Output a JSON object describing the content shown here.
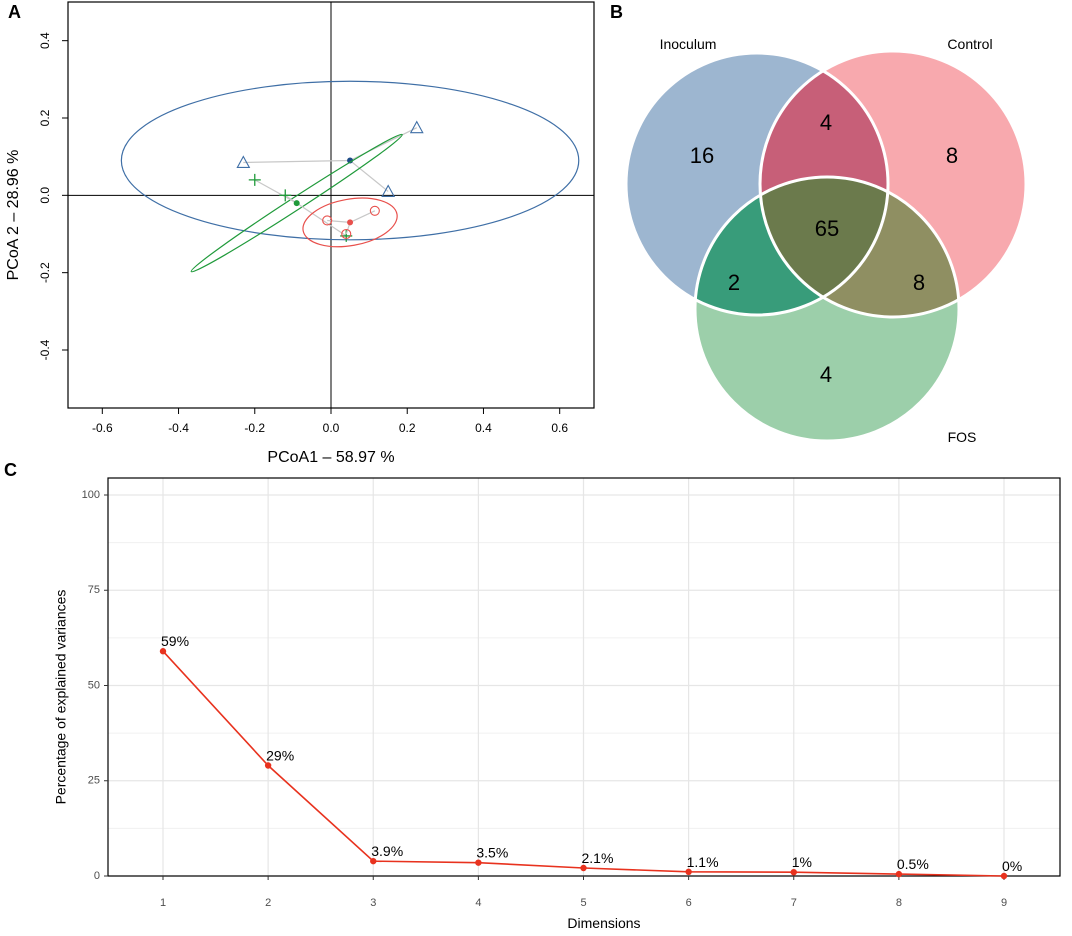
{
  "panels": {
    "a": "A",
    "b": "B",
    "c": "C"
  },
  "chart_data": [
    {
      "type": "scatter",
      "panel": "A",
      "title": "",
      "xlabel": "PCoA1 – 58.97 %",
      "ylabel": "PCoA 2 – 28.96 %",
      "xlim": [
        -0.69,
        0.69
      ],
      "ylim": [
        -0.55,
        0.5
      ],
      "xticks": [
        -0.6,
        -0.4,
        -0.2,
        0.0,
        0.2,
        0.4,
        0.6
      ],
      "xtick_labels": [
        "-0.6",
        "-0.4",
        "-0.2",
        "0.0",
        "0.2",
        "0.4",
        "0.6"
      ],
      "yticks": [
        -0.4,
        -0.2,
        0.0,
        0.2,
        0.4
      ],
      "ytick_labels": [
        "-0.4",
        "-0.2",
        "0.0",
        "0.2",
        "0.4"
      ],
      "reference_lines": {
        "x": 0,
        "y": 0
      },
      "series": [
        {
          "name": "Inoculum",
          "color": "#3f6fa6",
          "marker": "triangle",
          "centroid": [
            0.05,
            0.09
          ],
          "points": [
            [
              -0.23,
              0.085
            ],
            [
              0.15,
              0.01
            ],
            [
              0.225,
              0.175
            ]
          ],
          "ellipse": {
            "center": [
              0.05,
              0.09
            ],
            "rx": 0.6,
            "ry": 0.205,
            "angle_deg": 0
          }
        },
        {
          "name": "FOS",
          "color": "#1f9a3a",
          "marker": "plus",
          "centroid": [
            -0.09,
            -0.02
          ],
          "points": [
            [
              -0.2,
              0.04
            ],
            [
              -0.12,
              0.0
            ],
            [
              0.04,
              -0.105
            ]
          ],
          "ellipse": {
            "center": [
              -0.09,
              -0.02
            ],
            "rx": 0.33,
            "ry": 0.016,
            "angle_deg": -33
          }
        },
        {
          "name": "Control",
          "color": "#e8504c",
          "marker": "circle",
          "centroid": [
            0.05,
            -0.07
          ],
          "points": [
            [
              -0.01,
              -0.065
            ],
            [
              0.04,
              -0.1
            ],
            [
              0.115,
              -0.04
            ]
          ],
          "ellipse": {
            "center": [
              0.05,
              -0.07
            ],
            "rx": 0.125,
            "ry": 0.06,
            "angle_deg": -10
          }
        }
      ]
    },
    {
      "type": "venn",
      "panel": "B",
      "sets": [
        {
          "name": "Inoculum",
          "color": "#8ca9c8",
          "only": 16
        },
        {
          "name": "Control",
          "color": "#f79aa0",
          "only": 8
        },
        {
          "name": "FOS",
          "color": "#8bc79b",
          "only": 4
        }
      ],
      "intersections": {
        "Inoculum_Control": 4,
        "Inoculum_FOS": 2,
        "Control_FOS": 8,
        "all": 65
      }
    },
    {
      "type": "line",
      "panel": "C",
      "title": "",
      "xlabel": "Dimensions",
      "ylabel": "Percentage of explained variances",
      "x": [
        1,
        2,
        3,
        4,
        5,
        6,
        7,
        8,
        9
      ],
      "values": [
        59,
        29,
        3.9,
        3.5,
        2.1,
        1.1,
        1.0,
        0.5,
        0
      ],
      "labels": [
        "59%",
        "29%",
        "3.9%",
        "3.5%",
        "2.1%",
        "1.1%",
        "1%",
        "0.5%",
        "0%"
      ],
      "ylim": [
        0,
        100
      ],
      "yticks": [
        0,
        25,
        50,
        75,
        100
      ],
      "color": "#e8321e",
      "grid": true
    }
  ]
}
